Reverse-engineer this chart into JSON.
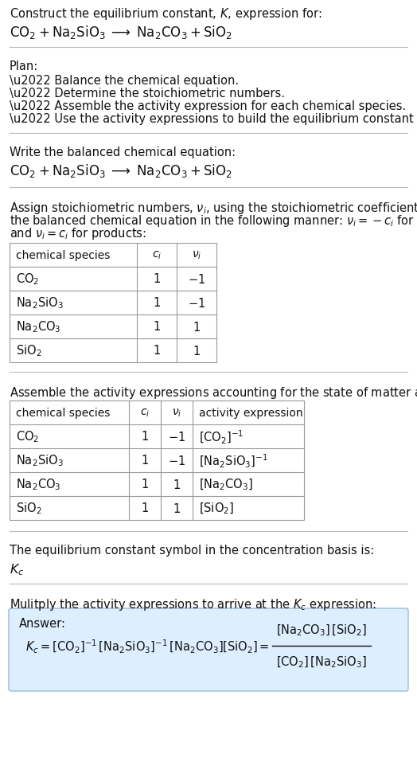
{
  "title_line1": "Construct the equilibrium constant, $K$, expression for:",
  "title_eq": "$\\mathrm{CO_2 + Na_2SiO_3 \\;\\longrightarrow\\; Na_2CO_3 + SiO_2}$",
  "plan_header": "Plan:",
  "plan_bullets": [
    "\\u2022 Balance the chemical equation.",
    "\\u2022 Determine the stoichiometric numbers.",
    "\\u2022 Assemble the activity expression for each chemical species.",
    "\\u2022 Use the activity expressions to build the equilibrium constant expression."
  ],
  "balanced_eq_header": "Write the balanced chemical equation:",
  "balanced_eq": "$\\mathrm{CO_2 + Na_2SiO_3 \\;\\longrightarrow\\; Na_2CO_3 + SiO_2}$",
  "stoich_text": [
    "Assign stoichiometric numbers, $\\nu_i$, using the stoichiometric coefficients, $c_i$, from",
    "the balanced chemical equation in the following manner: $\\nu_i = -c_i$ for reactants",
    "and $\\nu_i = c_i$ for products:"
  ],
  "table1_cols": [
    "chemical species",
    "$c_i$",
    "$\\nu_i$"
  ],
  "table1_rows": [
    [
      "$\\mathrm{CO_2}$",
      "1",
      "$-1$"
    ],
    [
      "$\\mathrm{Na_2SiO_3}$",
      "1",
      "$-1$"
    ],
    [
      "$\\mathrm{Na_2CO_3}$",
      "1",
      "$1$"
    ],
    [
      "$\\mathrm{SiO_2}$",
      "1",
      "$1$"
    ]
  ],
  "activity_header": "Assemble the activity expressions accounting for the state of matter and $\\nu_i$:",
  "table2_cols": [
    "chemical species",
    "$c_i$",
    "$\\nu_i$",
    "activity expression"
  ],
  "table2_rows": [
    [
      "$\\mathrm{CO_2}$",
      "1",
      "$-1$",
      "$[\\mathrm{CO_2}]^{-1}$"
    ],
    [
      "$\\mathrm{Na_2SiO_3}$",
      "1",
      "$-1$",
      "$[\\mathrm{Na_2SiO_3}]^{-1}$"
    ],
    [
      "$\\mathrm{Na_2CO_3}$",
      "1",
      "$1$",
      "$[\\mathrm{Na_2CO_3}]$"
    ],
    [
      "$\\mathrm{SiO_2}$",
      "1",
      "$1$",
      "$[\\mathrm{SiO_2}]$"
    ]
  ],
  "kc_header": "The equilibrium constant symbol in the concentration basis is:",
  "kc_symbol": "$K_c$",
  "multiply_header": "Mulitply the activity expressions to arrive at the $K_c$ expression:",
  "answer_label": "Answer:",
  "bg_color": "#ffffff",
  "divider_color": "#bbbbbb",
  "table_border": "#999999",
  "answer_bg": "#ddeeff",
  "answer_border": "#99bbdd",
  "text_color": "#111111",
  "fs": 10.5
}
